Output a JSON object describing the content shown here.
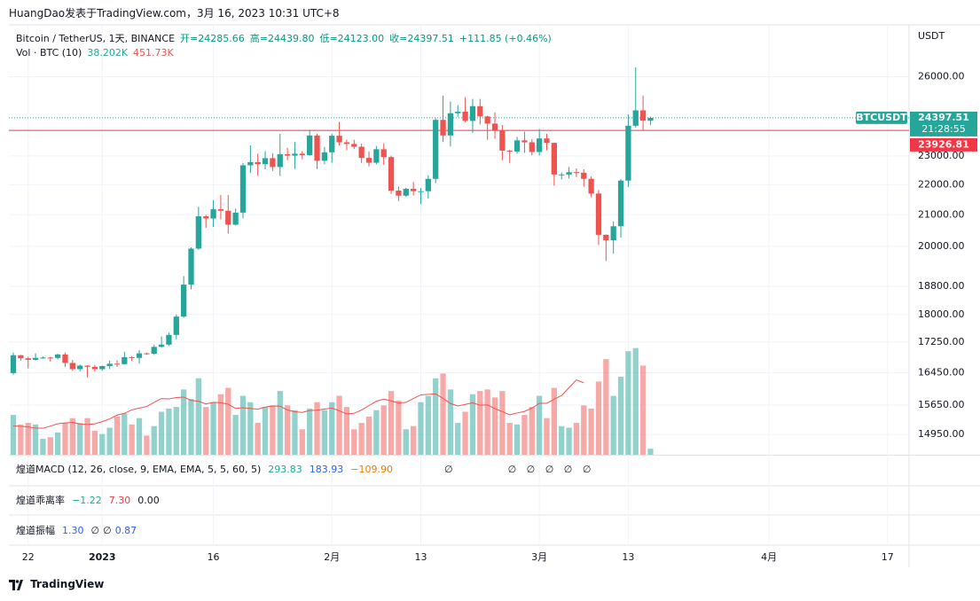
{
  "header": "HuangDao发表于TradingView.com，3月 16, 2023 10:31 UTC+8",
  "chart_data": {
    "type": "candlestick",
    "title": "Bitcoin / TetherUS, 1天, BINANCE",
    "ohlc_legend": [
      "开=24285.66",
      "高=24439.80",
      "低=24123.00",
      "收=24397.51",
      "+111.85 (+0.46%)"
    ],
    "open": [
      16440,
      16900,
      16820,
      16780,
      16830,
      16840,
      16830,
      16920,
      16700,
      16540,
      16630,
      16600,
      16540,
      16620,
      16680,
      16670,
      16850,
      16830,
      16950,
      16940,
      17120,
      17180,
      17440,
      17940,
      18850,
      19930,
      20950,
      20880,
      21180,
      21130,
      20680,
      21070,
      22670,
      22780,
      22710,
      22920,
      22610,
      23060,
      23010,
      23080,
      23030,
      23740,
      22830,
      23130,
      23730,
      23490,
      23430,
      23330,
      22930,
      22760,
      23240,
      22960,
      21800,
      21630,
      21860,
      21780,
      21780,
      22200,
      24320,
      23740,
      24570,
      24630,
      24280,
      24840,
      24450,
      24180,
      23930,
      23190,
      23160,
      23560,
      23490,
      23140,
      23630,
      23470,
      22350,
      22350,
      22430,
      22410,
      22200,
      21700,
      20360,
      20190,
      20630,
      22140,
      24100,
      24680,
      24285.66
    ],
    "high": [
      16970,
      16910,
      16860,
      16950,
      16870,
      16860,
      16940,
      16970,
      16780,
      16660,
      16640,
      16650,
      16630,
      16760,
      16770,
      16990,
      16880,
      17040,
      16970,
      17180,
      17400,
      17500,
      18000,
      19100,
      19970,
      21260,
      21000,
      21480,
      21650,
      21650,
      21200,
      22750,
      23380,
      23080,
      23170,
      23100,
      23800,
      23290,
      23500,
      23170,
      23950,
      23800,
      23320,
      23800,
      24250,
      23590,
      23580,
      23440,
      23160,
      23360,
      23450,
      23010,
      21940,
      21900,
      22090,
      21890,
      22330,
      24380,
      25250,
      25020,
      24880,
      25190,
      25120,
      25120,
      24480,
      24600,
      24130,
      23220,
      23690,
      23880,
      23600,
      23980,
      23800,
      23480,
      22420,
      22610,
      22560,
      22530,
      22280,
      21820,
      20370,
      20790,
      22190,
      24530,
      26380,
      25250,
      24439.8
    ],
    "low": [
      16400,
      16760,
      16560,
      16760,
      16810,
      16730,
      16790,
      16600,
      16500,
      16490,
      16330,
      16480,
      16500,
      16540,
      16600,
      16660,
      16750,
      16680,
      16910,
      16910,
      17100,
      17150,
      17320,
      17910,
      18710,
      19890,
      20580,
      20610,
      20850,
      20400,
      20660,
      20880,
      22400,
      22300,
      22530,
      22470,
      22300,
      22850,
      22540,
      22880,
      23010,
      22540,
      22710,
      22760,
      23370,
      23210,
      23250,
      22750,
      22630,
      22700,
      22690,
      21690,
      21450,
      21590,
      21640,
      21350,
      21530,
      22050,
      23500,
      23340,
      24440,
      24230,
      23840,
      24150,
      23580,
      23620,
      22850,
      22750,
      23080,
      23110,
      23020,
      23020,
      23200,
      21970,
      22180,
      22210,
      22260,
      21930,
      21580,
      20040,
      19550,
      19780,
      20270,
      21920,
      24040,
      23920,
      24123.0
    ],
    "close": [
      16900,
      16820,
      16780,
      16830,
      16840,
      16830,
      16920,
      16700,
      16540,
      16630,
      16600,
      16540,
      16620,
      16680,
      16670,
      16850,
      16830,
      16950,
      16940,
      17120,
      17180,
      17440,
      17940,
      18850,
      19930,
      20950,
      20880,
      21180,
      21130,
      20680,
      21070,
      22670,
      22780,
      22710,
      22920,
      22610,
      23060,
      23010,
      23080,
      23030,
      23740,
      22830,
      23130,
      23730,
      23490,
      23430,
      23330,
      22930,
      22760,
      23240,
      22960,
      21800,
      21630,
      21860,
      21780,
      21780,
      22200,
      24320,
      23740,
      24570,
      24630,
      24280,
      24840,
      24450,
      24180,
      23930,
      23190,
      23160,
      23560,
      23490,
      23140,
      23630,
      23470,
      22350,
      22350,
      22430,
      22410,
      22200,
      21700,
      20360,
      20190,
      20630,
      22140,
      24100,
      24680,
      24290,
      24397.51
    ],
    "up_color": "#26a69a",
    "down_color": "#ef5350",
    "xlim": [
      -0.6,
      120.9
    ],
    "xticks": [
      {
        "value": 2,
        "label": "22"
      },
      {
        "value": 12,
        "label": "2023"
      },
      {
        "value": 27,
        "label": "16"
      },
      {
        "value": 43,
        "label": "2月"
      },
      {
        "value": 55,
        "label": "13"
      },
      {
        "value": 71,
        "label": "3月"
      },
      {
        "value": 83,
        "label": "13"
      },
      {
        "value": 102,
        "label": "4月"
      },
      {
        "value": 118,
        "label": "17"
      }
    ],
    "ylim": [
      14490,
      28170
    ],
    "log_scale": true,
    "yticks": [
      {
        "value": 26000,
        "label": "26000.00"
      },
      {
        "value": 23000,
        "label": "23000.00"
      },
      {
        "value": 22000,
        "label": "22000.00"
      },
      {
        "value": 21000,
        "label": "21000.00"
      },
      {
        "value": 20000,
        "label": "20000.00"
      },
      {
        "value": 18800,
        "label": "18800.00"
      },
      {
        "value": 18000,
        "label": "18000.00"
      },
      {
        "value": 17250,
        "label": "17250.00"
      },
      {
        "value": 16450,
        "label": "16450.00"
      },
      {
        "value": 15650,
        "label": "15650.00"
      },
      {
        "value": 14950,
        "label": "14950.00"
      }
    ],
    "y_axis_label": "USDT",
    "grid": true,
    "volume": {
      "name": "Vol · BTC (10)",
      "values": [
        250,
        190,
        200,
        190,
        100,
        110,
        140,
        200,
        230,
        200,
        230,
        150,
        130,
        170,
        240,
        260,
        190,
        230,
        120,
        180,
        270,
        290,
        300,
        410,
        350,
        480,
        300,
        330,
        380,
        420,
        250,
        370,
        330,
        200,
        300,
        310,
        400,
        310,
        280,
        160,
        290,
        330,
        280,
        330,
        370,
        300,
        160,
        200,
        240,
        280,
        310,
        400,
        340,
        160,
        180,
        330,
        370,
        480,
        510,
        410,
        200,
        270,
        380,
        400,
        410,
        360,
        400,
        200,
        190,
        250,
        300,
        370,
        230,
        420,
        180,
        170,
        200,
        310,
        290,
        460,
        600,
        370,
        490,
        650,
        670,
        560,
        38.202
      ],
      "value_label": "38.202K",
      "ma": [
        181,
        179,
        175,
        168,
        166,
        180,
        195,
        200,
        203,
        192,
        190,
        194,
        208,
        225,
        249,
        260,
        282,
        293,
        303,
        329,
        353,
        351,
        359,
        362,
        341,
        336,
        319,
        329,
        327,
        317,
        291,
        295,
        291,
        286,
        299,
        306,
        305,
        281,
        270,
        266,
        278,
        280,
        287,
        293,
        276,
        257,
        260,
        281,
        309,
        336,
        349,
        338,
        325,
        329,
        353,
        376,
        379,
        382,
        354,
        322,
        306,
        316,
        326,
        311,
        313,
        290,
        271,
        251,
        262,
        272,
        293,
        323,
        323,
        349,
        372,
        421,
        470,
        451.73
      ],
      "ma_label": "451.73K",
      "ma_color": "#ef5350",
      "ylim": [
        0,
        2700
      ]
    },
    "last_price": {
      "symbol": "BTCUSDT",
      "value": 24397.51,
      "countdown": "21:28:55",
      "color": "#26a69a"
    },
    "price_line": {
      "value": 23926.81,
      "color": "#f23645"
    }
  },
  "panes": [
    {
      "title": "煌道MACD (12, 26, close, 9, EMA, EMA, 5, 5, 60, 5)",
      "values": [
        {
          "text": "293.83",
          "color": "#22ab94"
        },
        {
          "text": "183.93",
          "color": "#2962ff"
        },
        {
          "text": "−109.90",
          "color": "#f57c00"
        },
        {
          "text": "∅",
          "color": "#131722"
        },
        {
          "text": "∅ ∅ ∅ ∅ ∅",
          "color": "#131722"
        }
      ]
    },
    {
      "title": "煌道乖离率",
      "values": [
        {
          "text": "−1.22",
          "color": "#22ab94"
        },
        {
          "text": "7.30",
          "color": "#f23645"
        },
        {
          "text": "0.00",
          "color": "#131722"
        }
      ]
    },
    {
      "title": "煌道振幅",
      "values": [
        {
          "text": "1.30",
          "color": "#2962ff"
        },
        {
          "text": "∅",
          "color": "#131722"
        },
        {
          "text": "∅",
          "color": "#131722"
        },
        {
          "text": "0.87",
          "color": "#2962ff"
        }
      ]
    }
  ],
  "footer": "TradingView"
}
